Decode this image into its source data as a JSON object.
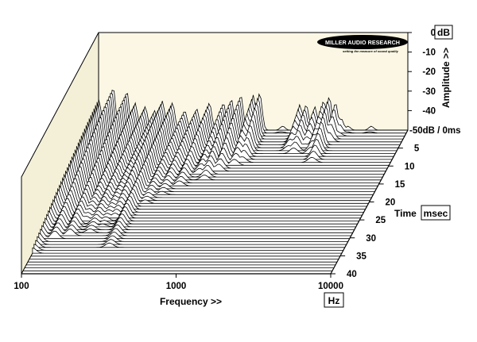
{
  "chart_data": {
    "type": "waterfall",
    "title": "",
    "brand_logo": {
      "text": "MILLER AUDIO RESEARCH",
      "tagline": "setting the measure of sound quality"
    },
    "x_axis": {
      "label": "Frequency >>",
      "unit": "Hz",
      "scale": "log",
      "range": [
        100,
        10000
      ],
      "tick_labels": [
        "100",
        "1000",
        "10000"
      ]
    },
    "y_axis": {
      "label": "Amplitude >>",
      "unit": "dB",
      "range": [
        -50,
        0
      ],
      "tick_labels": [
        "0",
        "-10",
        "-20",
        "-30",
        "-40"
      ],
      "bottom_label": "-50dB / 0ms"
    },
    "z_axis": {
      "label": "Time",
      "unit": "msec",
      "range": [
        0,
        40
      ],
      "tick_labels": [
        "5",
        "10",
        "15",
        "20",
        "25",
        "30",
        "35",
        "40"
      ]
    },
    "colors": {
      "back_wall": "#fbf7e4",
      "side_wall": "#f4f0d8",
      "trace": "#000000"
    },
    "slice_count": 50,
    "resonances": [
      {
        "freq_hz": 100,
        "peak_db": -34,
        "decay_ms": 35
      },
      {
        "freq_hz": 124,
        "peak_db": -28,
        "decay_ms": 31
      },
      {
        "freq_hz": 152,
        "peak_db": -30,
        "decay_ms": 30
      },
      {
        "freq_hz": 172,
        "peak_db": -36,
        "decay_ms": 26
      },
      {
        "freq_hz": 200,
        "peak_db": -38,
        "decay_ms": 29
      },
      {
        "freq_hz": 230,
        "peak_db": -40,
        "decay_ms": 27
      },
      {
        "freq_hz": 258,
        "peak_db": -35,
        "decay_ms": 25
      },
      {
        "freq_hz": 300,
        "peak_db": -36,
        "decay_ms": 33
      },
      {
        "freq_hz": 360,
        "peak_db": -40,
        "decay_ms": 21
      },
      {
        "freq_hz": 430,
        "peak_db": -39,
        "decay_ms": 18
      },
      {
        "freq_hz": 520,
        "peak_db": -36,
        "decay_ms": 16
      },
      {
        "freq_hz": 640,
        "peak_db": -36,
        "decay_ms": 13
      },
      {
        "freq_hz": 720,
        "peak_db": -34,
        "decay_ms": 14
      },
      {
        "freq_hz": 830,
        "peak_db": -32,
        "decay_ms": 12
      },
      {
        "freq_hz": 1000,
        "peak_db": -32,
        "decay_ms": 10
      },
      {
        "freq_hz": 1100,
        "peak_db": -31,
        "decay_ms": 9
      },
      {
        "freq_hz": 2000,
        "peak_db": -37,
        "decay_ms": 6
      },
      {
        "freq_hz": 2200,
        "peak_db": -37,
        "decay_ms": 7
      },
      {
        "freq_hz": 2500,
        "peak_db": -38,
        "decay_ms": 5
      },
      {
        "freq_hz": 2850,
        "peak_db": -35,
        "decay_ms": 7
      },
      {
        "freq_hz": 3100,
        "peak_db": -33,
        "decay_ms": 9
      },
      {
        "freq_hz": 3400,
        "peak_db": -36,
        "decay_ms": 4
      },
      {
        "freq_hz": 3700,
        "peak_db": -44,
        "decay_ms": 2
      },
      {
        "freq_hz": 1550,
        "peak_db": -48,
        "decay_ms": 1
      },
      {
        "freq_hz": 4100,
        "peak_db": -48,
        "decay_ms": 1
      },
      {
        "freq_hz": 5800,
        "peak_db": -48,
        "decay_ms": 1
      }
    ],
    "grid": false,
    "legend": "none"
  }
}
